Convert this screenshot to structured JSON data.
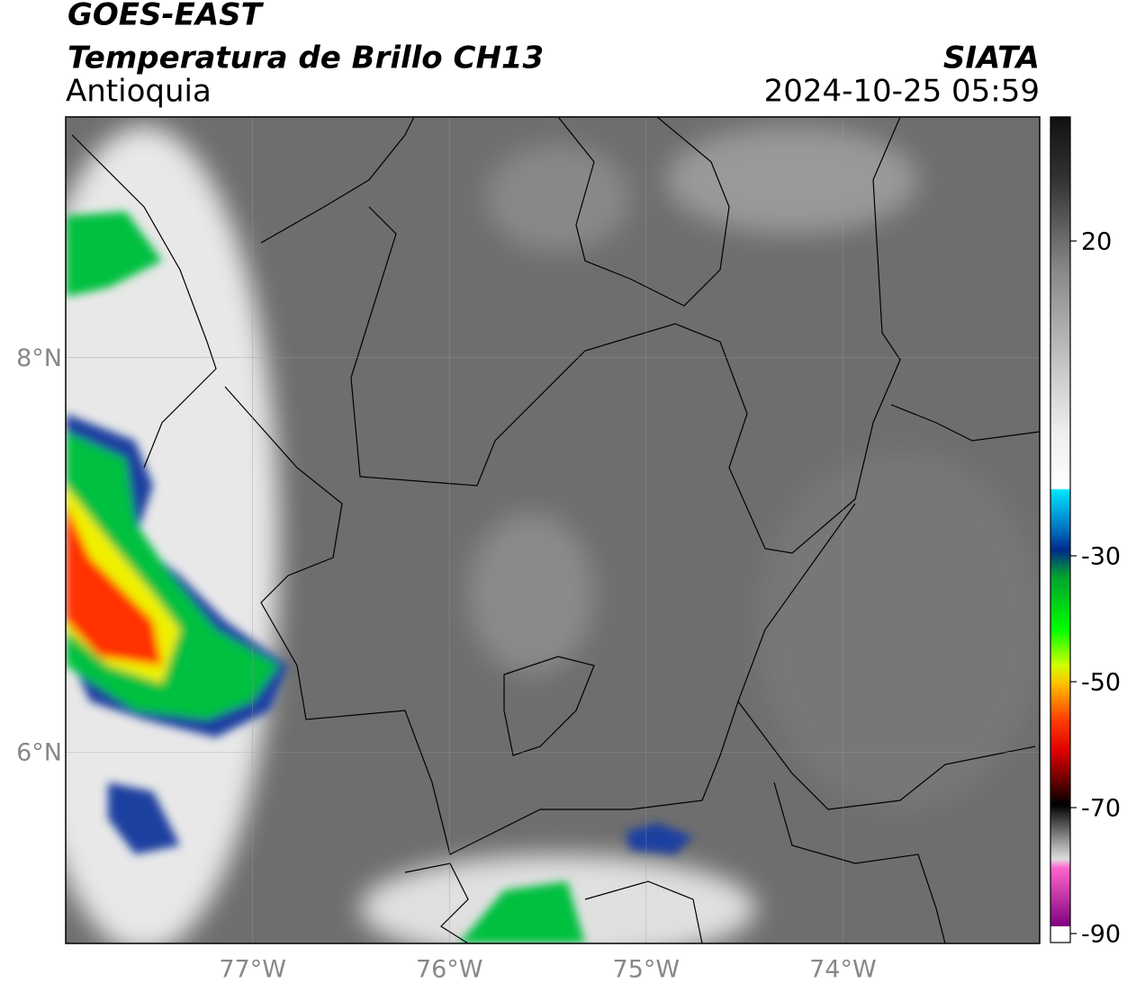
{
  "header": {
    "title": "GOES-EAST",
    "subtitle": "Temperatura de Brillo CH13",
    "region": "Antioquia",
    "agency": "SIATA",
    "timestamp": "2024-10-25 05:59"
  },
  "map": {
    "xlim": [
      -77.95,
      -73.0
    ],
    "ylim": [
      5.03,
      9.22
    ],
    "xticks": [
      {
        "value": -77,
        "label": "77°W"
      },
      {
        "value": -76,
        "label": "76°W"
      },
      {
        "value": -75,
        "label": "75°W"
      },
      {
        "value": -74,
        "label": "74°W"
      }
    ],
    "yticks": [
      {
        "value": 6,
        "label": "6°N"
      },
      {
        "value": 8,
        "label": "8°N"
      }
    ],
    "grid": true
  },
  "colorbar": {
    "lim": [
      -90,
      40
    ],
    "ticks": [
      20,
      -30,
      -50,
      -70,
      -90
    ]
  }
}
